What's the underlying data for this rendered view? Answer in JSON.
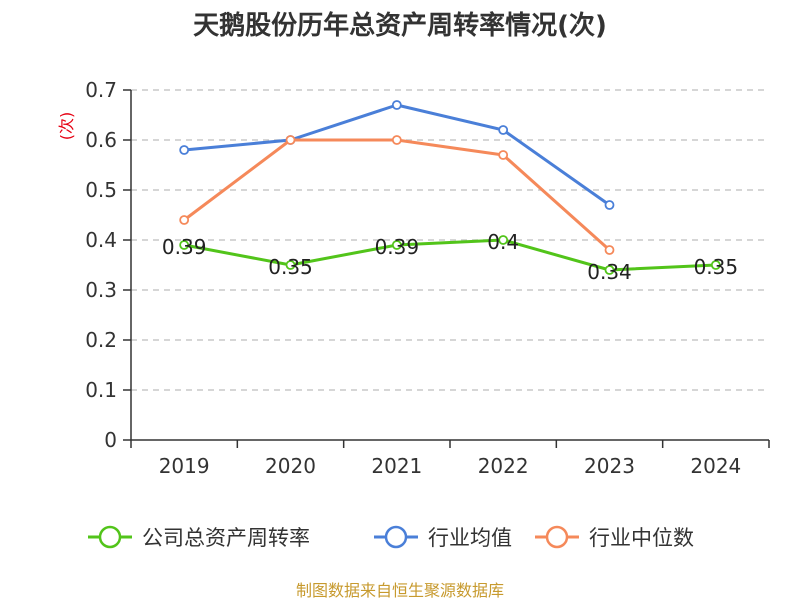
{
  "chart_data": {
    "type": "line",
    "title": "天鹅股份历年总资产周转率情况(次)",
    "ylabel": "(次)",
    "xlabel": "",
    "categories": [
      "2019",
      "2020",
      "2021",
      "2022",
      "2023",
      "2024"
    ],
    "ylim": [
      0,
      0.7
    ],
    "yticks": [
      "0",
      "0.1",
      "0.2",
      "0.3",
      "0.4",
      "0.5",
      "0.6",
      "0.7"
    ],
    "grid": true,
    "legend_position": "bottom",
    "series": [
      {
        "name": "公司总资产周转率",
        "color": "#52c41a",
        "values": [
          0.39,
          0.35,
          0.39,
          0.4,
          0.34,
          0.35
        ],
        "labels": [
          "0.39",
          "0.35",
          "0.39",
          "0.4",
          "0.34",
          "0.35"
        ]
      },
      {
        "name": "行业均值",
        "color": "#4a7fd8",
        "values": [
          0.58,
          0.6,
          0.67,
          0.62,
          0.47,
          null
        ]
      },
      {
        "name": "行业中位数",
        "color": "#f5895a",
        "values": [
          0.44,
          0.6,
          0.6,
          0.57,
          0.38,
          null
        ]
      }
    ]
  },
  "source": "制图数据来自恒生聚源数据库"
}
